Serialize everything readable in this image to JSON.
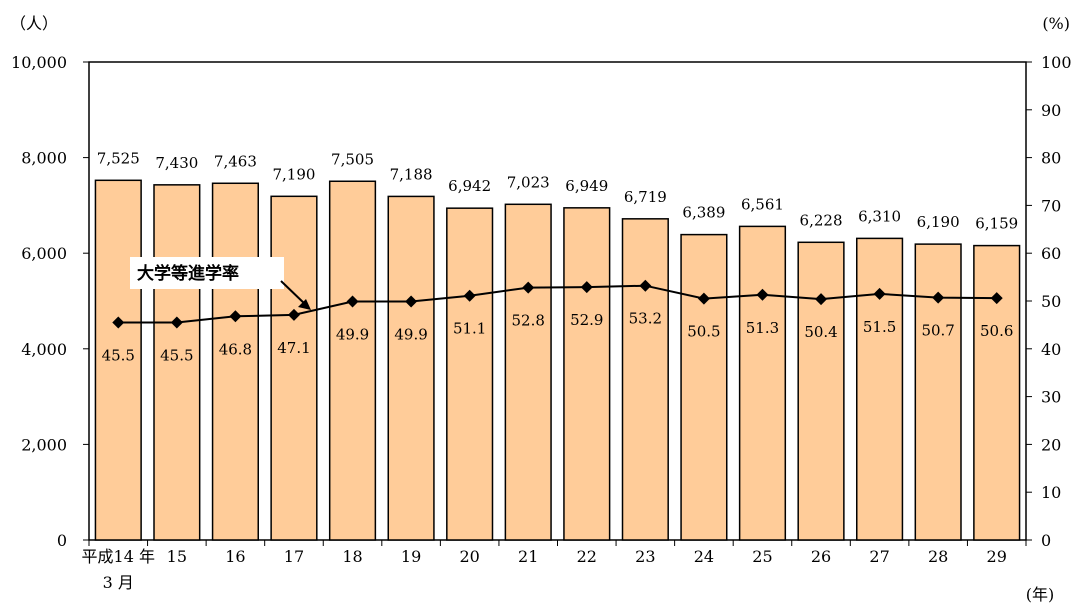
{
  "chart_data": {
    "type": "bar",
    "categories": [
      "平成14年3月",
      "15",
      "16",
      "17",
      "18",
      "19",
      "20",
      "21",
      "22",
      "23",
      "24",
      "25",
      "26",
      "27",
      "28",
      "29"
    ],
    "x_tick_labels": [
      {
        "top": "平成14 年",
        "bottom": "3 月"
      },
      {
        "top": "15",
        "bottom": ""
      },
      {
        "top": "16",
        "bottom": ""
      },
      {
        "top": "17",
        "bottom": ""
      },
      {
        "top": "18",
        "bottom": ""
      },
      {
        "top": "19",
        "bottom": ""
      },
      {
        "top": "20",
        "bottom": ""
      },
      {
        "top": "21",
        "bottom": ""
      },
      {
        "top": "22",
        "bottom": ""
      },
      {
        "top": "23",
        "bottom": ""
      },
      {
        "top": "24",
        "bottom": ""
      },
      {
        "top": "25",
        "bottom": ""
      },
      {
        "top": "26",
        "bottom": ""
      },
      {
        "top": "27",
        "bottom": ""
      },
      {
        "top": "28",
        "bottom": ""
      },
      {
        "top": "29",
        "bottom": ""
      }
    ],
    "series": [
      {
        "type": "bar",
        "axis": "left",
        "values": [
          7525,
          7430,
          7463,
          7190,
          7505,
          7188,
          6942,
          7023,
          6949,
          6719,
          6389,
          6561,
          6228,
          6310,
          6190,
          6159
        ],
        "labels": [
          "7,525",
          "7,430",
          "7,463",
          "7,190",
          "7,505",
          "7,188",
          "6,942",
          "7,023",
          "6,949",
          "6,719",
          "6,389",
          "6,561",
          "6,228",
          "6,310",
          "6,190",
          "6,159"
        ],
        "color": "#FFCC99"
      },
      {
        "type": "line",
        "axis": "right",
        "name": "大学等進学率",
        "values": [
          45.5,
          45.5,
          46.8,
          47.1,
          49.9,
          49.9,
          51.1,
          52.8,
          52.9,
          53.2,
          50.5,
          51.3,
          50.4,
          51.5,
          50.7,
          50.6
        ],
        "labels": [
          "45.5",
          "45.5",
          "46.8",
          "47.1",
          "49.9",
          "49.9",
          "51.1",
          "52.8",
          "52.9",
          "53.2",
          "50.5",
          "51.3",
          "50.4",
          "51.5",
          "50.7",
          "50.6"
        ],
        "color": "#000000",
        "marker": "diamond"
      }
    ],
    "left_axis": {
      "unit": "（人）",
      "ylim": [
        0,
        10000
      ],
      "ticks": [
        0,
        2000,
        4000,
        6000,
        8000,
        10000
      ],
      "tick_labels": [
        "0",
        "2,000",
        "4,000",
        "6,000",
        "8,000",
        "10,000"
      ]
    },
    "right_axis": {
      "unit": "(%)",
      "ylim": [
        0,
        100
      ],
      "ticks": [
        0,
        10,
        20,
        30,
        40,
        50,
        60,
        70,
        80,
        90,
        100
      ],
      "tick_labels": [
        "0",
        "10",
        "20",
        "30",
        "40",
        "50",
        "60",
        "70",
        "80",
        "90",
        "100"
      ]
    },
    "x_unit": "(年)",
    "annotation": "大学等進学率",
    "grid": false,
    "legend": "none"
  }
}
